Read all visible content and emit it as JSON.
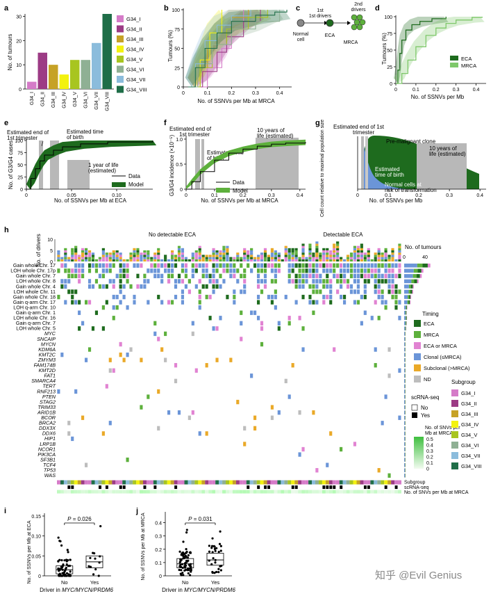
{
  "panel_letters": [
    "a",
    "b",
    "c",
    "d",
    "e",
    "f",
    "g",
    "h",
    "i",
    "j"
  ],
  "subgroup_colors": {
    "G34_I": "#d57bc8",
    "G34_II": "#9c3b85",
    "G34_III": "#c6a226",
    "G34_IV": "#f3f20f",
    "G34_V": "#a8c520",
    "G34_VI": "#8fb094",
    "G34_VII": "#8bbcdc",
    "G34_VIII": "#1f6e48"
  },
  "legend_subgroups": [
    "G34_I",
    "G34_II",
    "G34_III",
    "G34_IV",
    "G34_V",
    "G34_VI",
    "G34_VII",
    "G34_VIII"
  ],
  "chart_data": [
    {
      "type": "bar",
      "panel": "a",
      "categories": [
        "G34_I",
        "G34_II",
        "G34_III",
        "G34_IV",
        "G34_V",
        "G34_VI",
        "G34_VII",
        "G34_VIII"
      ],
      "values": [
        3,
        15,
        10,
        6,
        12,
        12,
        19,
        31
      ],
      "ylabel": "No. of tumours",
      "ylim": [
        0,
        31
      ],
      "yticks": [
        "0",
        "10",
        "20",
        "30"
      ]
    },
    {
      "type": "line",
      "panel": "b",
      "xlabel": "No. of SSNVs per Mb at MRCA",
      "ylabel": "Tumours (%)",
      "xlim": [
        0,
        0.45
      ],
      "ylim": [
        0,
        100
      ],
      "xticks": [
        "0",
        "0.1",
        "0.2",
        "0.3",
        "0.4"
      ],
      "yticks": [
        "0",
        "25",
        "50",
        "75",
        "100"
      ],
      "series": [
        {
          "group": "G34_I",
          "x": [
            0.05,
            0.1,
            0.16,
            0.2,
            0.25
          ],
          "y": [
            0,
            25,
            50,
            75,
            100
          ]
        },
        {
          "group": "G34_II",
          "x": [
            0.03,
            0.08,
            0.14,
            0.18,
            0.25,
            0.32
          ],
          "y": [
            0,
            20,
            45,
            65,
            85,
            100
          ]
        },
        {
          "group": "G34_III",
          "x": [
            0.03,
            0.06,
            0.1,
            0.14,
            0.2,
            0.27
          ],
          "y": [
            0,
            25,
            50,
            70,
            90,
            100
          ]
        },
        {
          "group": "G34_IV",
          "x": [
            0.04,
            0.07,
            0.11,
            0.16
          ],
          "y": [
            0,
            35,
            70,
            100
          ]
        },
        {
          "group": "G34_V",
          "x": [
            0.03,
            0.07,
            0.12,
            0.18,
            0.27,
            0.35
          ],
          "y": [
            0,
            25,
            55,
            75,
            90,
            100
          ]
        },
        {
          "group": "G34_VI",
          "x": [
            0.03,
            0.06,
            0.12,
            0.2,
            0.3,
            0.4
          ],
          "y": [
            0,
            30,
            55,
            75,
            85,
            100
          ]
        },
        {
          "group": "G34_VII",
          "x": [
            0.02,
            0.05,
            0.09,
            0.14,
            0.2,
            0.28
          ],
          "y": [
            0,
            30,
            60,
            80,
            92,
            100
          ]
        },
        {
          "group": "G34_VIII",
          "x": [
            0.02,
            0.05,
            0.09,
            0.14,
            0.2,
            0.3,
            0.38,
            0.43
          ],
          "y": [
            0,
            25,
            50,
            70,
            85,
            93,
            97,
            100
          ]
        }
      ]
    },
    {
      "type": "line",
      "panel": "d",
      "xlabel": "No. of SSNVs per Mb",
      "ylabel": "Tumours (%)",
      "xlim": [
        0,
        0.45
      ],
      "ylim": [
        0,
        100
      ],
      "xticks": [
        "0",
        "0.1",
        "0.2",
        "0.3",
        "0.4"
      ],
      "yticks": [
        "0",
        "25",
        "50",
        "75",
        "100"
      ],
      "series": [
        {
          "name": "ECA",
          "x": [
            0,
            0.01,
            0.02,
            0.03,
            0.05,
            0.08,
            0.12,
            0.18,
            0.25
          ],
          "y": [
            0,
            20,
            45,
            65,
            80,
            88,
            93,
            97,
            100
          ]
        },
        {
          "name": "MRCA",
          "x": [
            0,
            0.03,
            0.06,
            0.1,
            0.15,
            0.2,
            0.25,
            0.3,
            0.38,
            0.43
          ],
          "y": [
            0,
            15,
            35,
            55,
            72,
            83,
            90,
            95,
            99,
            100
          ]
        }
      ]
    },
    {
      "type": "line",
      "panel": "e",
      "xlabel": "No. of SSNVs per Mb at ECA",
      "ylabel": "No. of G3/G4 cases",
      "xlim": [
        0,
        0.14
      ],
      "ylim": [
        0,
        100
      ],
      "xticks": [
        "0",
        "0.05",
        "0.10"
      ],
      "yticks": [
        "0",
        "25",
        "50",
        "75",
        "100"
      ],
      "legend": [
        "Data",
        "Model"
      ],
      "annotations": [
        "Estimated end of 1st trimester",
        "Estimated time of birth",
        "1 year of life (estimated)"
      ],
      "series": [
        {
          "name": "Data",
          "x": [
            0,
            0.005,
            0.01,
            0.015,
            0.02,
            0.03,
            0.04,
            0.06,
            0.09,
            0.14
          ],
          "y": [
            0,
            22,
            42,
            58,
            70,
            80,
            87,
            93,
            97,
            100
          ]
        }
      ]
    },
    {
      "type": "line",
      "panel": "f",
      "xlabel": "No. of SSNVs per Mb at MRCA",
      "ylabel": "G3/G4 incidence (×10⁻⁵)",
      "xlim": [
        0,
        0.42
      ],
      "ylim": [
        0,
        1
      ],
      "xticks": [
        "0",
        "0.1",
        "0.2",
        "0.3",
        "0.4"
      ],
      "yticks": [
        "0",
        "0.5",
        "1.0"
      ],
      "legend": [
        "Data",
        "Model"
      ],
      "annotations": [
        "Estimated end of 1st trimester",
        "Estimated time of birth",
        "10 years of life (estimated)"
      ],
      "series": [
        {
          "name": "Data",
          "x": [
            0,
            0.02,
            0.05,
            0.1,
            0.15,
            0.2,
            0.25,
            0.3,
            0.35,
            0.42
          ],
          "y": [
            0,
            0.15,
            0.35,
            0.58,
            0.72,
            0.8,
            0.86,
            0.9,
            0.92,
            0.94
          ]
        }
      ]
    },
    {
      "type": "area",
      "panel": "g",
      "xlabel": "No. of SSNVs per Mb",
      "ylabel": "Cell count relative to maximal population size",
      "xlim": [
        0,
        0.42
      ],
      "xticks": [
        "0",
        "0.1",
        "0.2",
        "0.3",
        "0.4"
      ],
      "annotations": [
        "Estimated end of 1st trimester",
        "Pre-malignant clone",
        "10 years of life (estimated)",
        "Estimated time of birth",
        "Normal cells at risk of transformation"
      ]
    },
    {
      "type": "heatmap",
      "panel": "h",
      "groups": [
        "No detectable ECA",
        "Detectable ECA"
      ],
      "drivers_axis_label": "No. of drivers",
      "drivers_ticks": [
        "0",
        "5",
        "10"
      ],
      "tumours_axis_label": "No. of tumours",
      "tumours_ticks": [
        "0",
        "40"
      ],
      "rows": [
        "Gain whole Chr. 17",
        "LOH whole Chr. 17p",
        "Gain whole Chr. 7",
        "LOH whole Chr. 8",
        "Gain whole Chr. 4",
        "LOH whole Chr. 11",
        "Gain whole Chr. 18",
        "Gain q-arm Chr. 17",
        "LOH q-arm Chr. 10",
        "Gain q-arm Chr. 1",
        "LOH whole Chr. 16",
        "Gain q-arm Chr. 7",
        "LOH whole Chr. 5",
        "MYC",
        "SNCAIP",
        "MYCN",
        "KDM6A",
        "KMT2C",
        "ZMYM3",
        "FAM174B",
        "KMT2D",
        "FAT1",
        "SMARCA4",
        "TERT",
        "RNF213",
        "PTEN",
        "STAG2",
        "TRIM33",
        "ARID1B",
        "BCOR",
        "BRCA2",
        "DDX3X",
        "DDX6",
        "HIP1",
        "LRP1B",
        "NCOR1",
        "PIK3CA",
        "SF3B1",
        "TCF4",
        "TP53",
        "WAS"
      ],
      "bottom_tracks": [
        "Subgroup",
        "scRNA-seq",
        "No. of SNVs per Mb at MRCA"
      ],
      "timing_legend_title": "Timing",
      "timing_legend": [
        {
          "label": "ECA",
          "color": "#1e6b1e"
        },
        {
          "label": "MRCA",
          "color": "#5db03c"
        },
        {
          "label": "ECA or MRCA",
          "color": "#e183d2"
        },
        {
          "label": "Clonal (≤MRCA)",
          "color": "#6b95d8"
        },
        {
          "label": "Subclonal (>MRCA)",
          "color": "#eaa928"
        },
        {
          "label": "ND",
          "color": "#bdbdbd"
        }
      ],
      "scrna_title": "scRNA-seq",
      "scrna_legend": [
        "No",
        "Yes"
      ],
      "subgroup_title": "Subgroup",
      "snv_legend_title": "No. of SNVs per Mb at MRCA",
      "snv_ticks": [
        "0.5",
        "0.4",
        "0.3",
        "0.2",
        "0.1",
        "0"
      ]
    },
    {
      "type": "scatter",
      "panel": "i",
      "categories": [
        "No",
        "Yes"
      ],
      "xlabel": "Driver in MYC/MYCN/PRDM6",
      "ylabel": "No. of SSNVs per Mb at ECA",
      "ylim": [
        0,
        0.15
      ],
      "yticks": [
        "0",
        "0.05",
        "0.10",
        "0.15"
      ],
      "p_value": "P = 0.026",
      "box": [
        {
          "q1": 0.005,
          "median": 0.015,
          "q3": 0.025
        },
        {
          "q1": 0.02,
          "median": 0.035,
          "q3": 0.05
        }
      ]
    },
    {
      "type": "scatter",
      "panel": "j",
      "categories": [
        "No",
        "Yes"
      ],
      "xlabel": "Driver in MYC/MYCN/PRDM6",
      "ylabel": "No. of SSNVs per Mb at MRCA",
      "ylim": [
        0,
        0.45
      ],
      "yticks": [
        "0",
        "0.1",
        "0.2",
        "0.3",
        "0.4"
      ],
      "p_value": "P = 0.031",
      "box": [
        {
          "q1": 0.06,
          "median": 0.09,
          "q3": 0.13
        },
        {
          "q1": 0.08,
          "median": 0.12,
          "q3": 0.17
        }
      ]
    }
  ],
  "panel_c": {
    "labels": [
      "1st drivers",
      "2nd drivers",
      "Normal cell",
      "ECA",
      "MRCA"
    ]
  },
  "watermark": "知乎 @Evil Genius"
}
